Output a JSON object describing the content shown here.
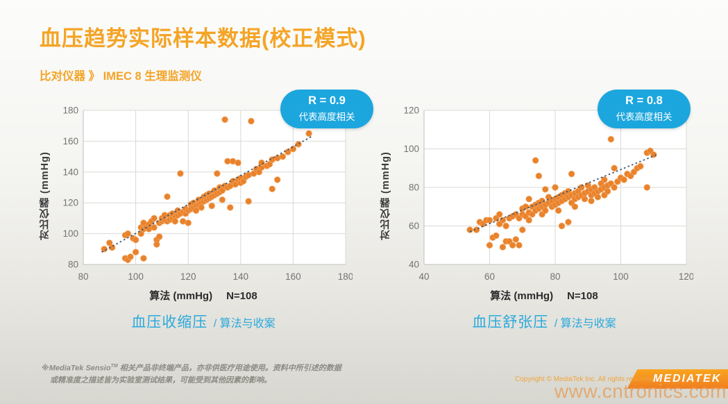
{
  "header": {
    "title": "血压趋势实际样本数据(校正模式)",
    "subtitle": "比对仪器 》 IMEC 8 生理监测仪"
  },
  "colors": {
    "accent_orange": "#F4A426",
    "badge_blue": "#1CA6DE",
    "caption_blue": "#2BA9DC",
    "point_orange": "#E8822C",
    "trend_dark": "#44546A",
    "grid_gray": "#D9D9D6",
    "tick_gray": "#737373"
  },
  "footnote": {
    "line1_prefix": "※MediaTek Sensio",
    "tm": "TM",
    "line1_rest": " 相关产品非终端产品，亦非供医疗用途使用。资料中所引述的数据",
    "line2": "或精准度之描述皆为实验室测试结果，可能受到其他因素的影响。"
  },
  "copyright": "Copyright © MediaTek Inc. All rights reserved",
  "logo_text": "MEDIATEK",
  "watermark": "www.cntronics.com",
  "chart_data": [
    {
      "type": "scatter",
      "r_value": "R = 0.9",
      "r_note": "代表高度相关",
      "ylabel": "对比仪器 (mmHg)",
      "xlabel": "算法 (mmHg)",
      "n_label": "N=108",
      "caption_main": "血压收缩压",
      "caption_sub": "/ 算法与收案",
      "xlim": [
        80,
        180
      ],
      "ylim": [
        80,
        180
      ],
      "xticks": [
        80,
        100,
        120,
        140,
        160,
        180
      ],
      "yticks": [
        80,
        100,
        120,
        140,
        160,
        180
      ],
      "grid": true,
      "trend": [
        [
          87,
          88
        ],
        [
          167,
          163
        ]
      ],
      "points": [
        [
          88,
          90
        ],
        [
          90,
          94
        ],
        [
          91,
          91
        ],
        [
          96,
          84
        ],
        [
          97,
          83
        ],
        [
          98,
          85
        ],
        [
          100,
          88
        ],
        [
          96,
          99
        ],
        [
          97,
          100
        ],
        [
          99,
          97
        ],
        [
          100,
          96
        ],
        [
          102,
          100
        ],
        [
          103,
          84
        ],
        [
          102,
          104
        ],
        [
          103,
          103
        ],
        [
          103,
          107
        ],
        [
          104,
          104
        ],
        [
          105,
          106
        ],
        [
          105,
          103
        ],
        [
          106,
          108
        ],
        [
          107,
          104
        ],
        [
          107,
          110
        ],
        [
          108,
          96
        ],
        [
          108,
          93
        ],
        [
          109,
          98
        ],
        [
          109,
          107
        ],
        [
          110,
          108
        ],
        [
          110,
          110
        ],
        [
          111,
          109
        ],
        [
          111,
          112
        ],
        [
          112,
          108
        ],
        [
          112,
          124
        ],
        [
          113,
          112
        ],
        [
          113,
          109
        ],
        [
          114,
          110
        ],
        [
          114,
          113
        ],
        [
          115,
          111
        ],
        [
          115,
          108
        ],
        [
          116,
          112
        ],
        [
          116,
          115
        ],
        [
          117,
          113
        ],
        [
          117,
          139
        ],
        [
          118,
          114
        ],
        [
          118,
          108
        ],
        [
          119,
          113
        ],
        [
          119,
          116
        ],
        [
          120,
          115
        ],
        [
          120,
          107
        ],
        [
          121,
          116
        ],
        [
          121,
          119
        ],
        [
          122,
          117
        ],
        [
          122,
          120
        ],
        [
          123,
          118
        ],
        [
          123,
          115
        ],
        [
          124,
          119
        ],
        [
          124,
          122
        ],
        [
          125,
          120
        ],
        [
          125,
          117
        ],
        [
          126,
          121
        ],
        [
          126,
          124
        ],
        [
          127,
          122
        ],
        [
          127,
          125
        ],
        [
          128,
          123
        ],
        [
          128,
          126
        ],
        [
          129,
          124
        ],
        [
          129,
          118
        ],
        [
          130,
          125
        ],
        [
          130,
          128
        ],
        [
          131,
          126
        ],
        [
          131,
          139
        ],
        [
          132,
          127
        ],
        [
          132,
          130
        ],
        [
          133,
          128
        ],
        [
          133,
          122
        ],
        [
          134,
          131
        ],
        [
          134,
          174
        ],
        [
          135,
          130
        ],
        [
          135,
          147
        ],
        [
          136,
          131
        ],
        [
          136,
          117
        ],
        [
          137,
          134
        ],
        [
          137,
          147
        ],
        [
          138,
          132
        ],
        [
          139,
          135
        ],
        [
          139,
          146
        ],
        [
          140,
          133
        ],
        [
          140,
          136
        ],
        [
          141,
          134
        ],
        [
          142,
          137
        ],
        [
          143,
          138
        ],
        [
          143,
          121
        ],
        [
          144,
          173
        ],
        [
          145,
          139
        ],
        [
          146,
          142
        ],
        [
          147,
          140
        ],
        [
          148,
          143
        ],
        [
          148,
          146
        ],
        [
          150,
          144
        ],
        [
          151,
          145
        ],
        [
          152,
          148
        ],
        [
          152,
          129
        ],
        [
          154,
          135
        ],
        [
          154,
          149
        ],
        [
          156,
          150
        ],
        [
          158,
          153
        ],
        [
          160,
          155
        ],
        [
          162,
          158
        ],
        [
          166,
          165
        ]
      ]
    },
    {
      "type": "scatter",
      "r_value": "R = 0.8",
      "r_note": "代表高度相关",
      "ylabel": "对比仪器 (mmHg)",
      "xlabel": "算法 (mmHg)",
      "n_label": "N=108",
      "caption_main": "血压舒张压",
      "caption_sub": "/ 算法与收案",
      "xlim": [
        40,
        120
      ],
      "ylim": [
        40,
        120
      ],
      "xticks": [
        40,
        60,
        80,
        100,
        120
      ],
      "yticks": [
        40,
        60,
        80,
        100,
        120
      ],
      "grid": true,
      "trend": [
        [
          54,
          57
        ],
        [
          111,
          97
        ]
      ],
      "points": [
        [
          54,
          58
        ],
        [
          56,
          58
        ],
        [
          57,
          62
        ],
        [
          58,
          61
        ],
        [
          59,
          63
        ],
        [
          60,
          50
        ],
        [
          60,
          63
        ],
        [
          61,
          54
        ],
        [
          62,
          55
        ],
        [
          62,
          64
        ],
        [
          63,
          61
        ],
        [
          63,
          66
        ],
        [
          64,
          63
        ],
        [
          64,
          49
        ],
        [
          65,
          60
        ],
        [
          65,
          52
        ],
        [
          66,
          64
        ],
        [
          66,
          52
        ],
        [
          67,
          50
        ],
        [
          67,
          65
        ],
        [
          68,
          66
        ],
        [
          68,
          53
        ],
        [
          69,
          64
        ],
        [
          69,
          50
        ],
        [
          70,
          58
        ],
        [
          70,
          66
        ],
        [
          70,
          69
        ],
        [
          71,
          65
        ],
        [
          71,
          70
        ],
        [
          72,
          67
        ],
        [
          72,
          74
        ],
        [
          72,
          63
        ],
        [
          73,
          66
        ],
        [
          73,
          70
        ],
        [
          74,
          68
        ],
        [
          74,
          71
        ],
        [
          74,
          94
        ],
        [
          75,
          69
        ],
        [
          75,
          72
        ],
        [
          75,
          86
        ],
        [
          76,
          70
        ],
        [
          76,
          73
        ],
        [
          76,
          66
        ],
        [
          77,
          68
        ],
        [
          77,
          71
        ],
        [
          77,
          79
        ],
        [
          78,
          72
        ],
        [
          78,
          75
        ],
        [
          79,
          70
        ],
        [
          79,
          73
        ],
        [
          80,
          71
        ],
        [
          80,
          74
        ],
        [
          80,
          80
        ],
        [
          81,
          72
        ],
        [
          81,
          75
        ],
        [
          81,
          68
        ],
        [
          82,
          60
        ],
        [
          82,
          73
        ],
        [
          82,
          76
        ],
        [
          83,
          74
        ],
        [
          83,
          77
        ],
        [
          84,
          62
        ],
        [
          84,
          75
        ],
        [
          84,
          78
        ],
        [
          85,
          72
        ],
        [
          85,
          76
        ],
        [
          85,
          87
        ],
        [
          86,
          74
        ],
        [
          86,
          77
        ],
        [
          86,
          70
        ],
        [
          87,
          75
        ],
        [
          87,
          78
        ],
        [
          88,
          76
        ],
        [
          88,
          80
        ],
        [
          89,
          74
        ],
        [
          89,
          77
        ],
        [
          90,
          78
        ],
        [
          90,
          81
        ],
        [
          91,
          76
        ],
        [
          91,
          79
        ],
        [
          91,
          73
        ],
        [
          92,
          77
        ],
        [
          92,
          80
        ],
        [
          93,
          75
        ],
        [
          93,
          78
        ],
        [
          94,
          79
        ],
        [
          94,
          82
        ],
        [
          95,
          80
        ],
        [
          95,
          84
        ],
        [
          95,
          76
        ],
        [
          96,
          78
        ],
        [
          96,
          81
        ],
        [
          97,
          105
        ],
        [
          97,
          82
        ],
        [
          98,
          90
        ],
        [
          98,
          80
        ],
        [
          99,
          83
        ],
        [
          100,
          85
        ],
        [
          101,
          84
        ],
        [
          102,
          87
        ],
        [
          103,
          86
        ],
        [
          104,
          88
        ],
        [
          105,
          90
        ],
        [
          106,
          91
        ],
        [
          108,
          80
        ],
        [
          108,
          98
        ],
        [
          109,
          99
        ],
        [
          110,
          97
        ]
      ]
    }
  ]
}
